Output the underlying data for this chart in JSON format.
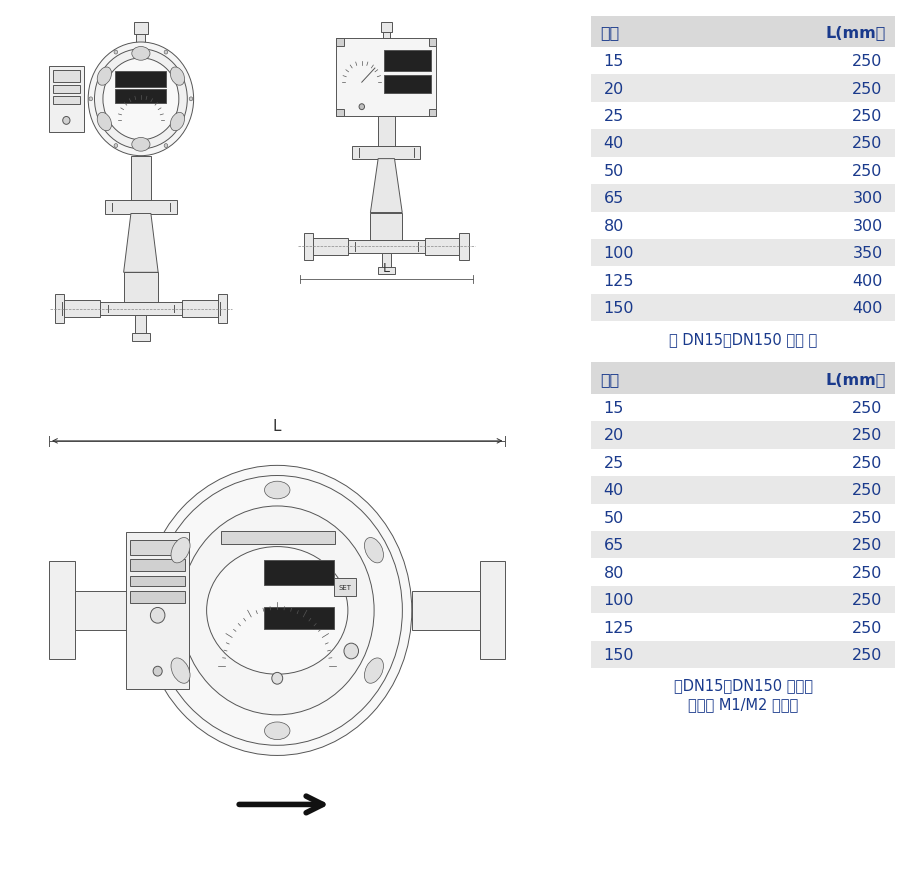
{
  "table1_header": [
    "口径",
    "L(mm）"
  ],
  "table1_rows": [
    [
      "15",
      "250"
    ],
    [
      "20",
      "250"
    ],
    [
      "25",
      "250"
    ],
    [
      "40",
      "250"
    ],
    [
      "50",
      "250"
    ],
    [
      "65",
      "300"
    ],
    [
      "80",
      "300"
    ],
    [
      "100",
      "350"
    ],
    [
      "125",
      "400"
    ],
    [
      "150",
      "400"
    ]
  ],
  "table1_note": "（ DN15～DN150 气体 ）",
  "table2_header": [
    "口径",
    "L(mm）"
  ],
  "table2_rows": [
    [
      "15",
      "250"
    ],
    [
      "20",
      "250"
    ],
    [
      "25",
      "250"
    ],
    [
      "40",
      "250"
    ],
    [
      "50",
      "250"
    ],
    [
      "65",
      "250"
    ],
    [
      "80",
      "250"
    ],
    [
      "100",
      "250"
    ],
    [
      "125",
      "250"
    ],
    [
      "150",
      "250"
    ]
  ],
  "table2_note1": "（DN15～DN150 液体）",
  "table2_note2": "（可选 M1/M2 表头）",
  "header_bg": "#d9d9d9",
  "row_bg_odd": "#ffffff",
  "row_bg_even": "#e8e8e8",
  "text_color": "#1a3a8c",
  "note_color": "#1a3a8c",
  "bg_color": "#ffffff",
  "line_color": "#555555",
  "light_fill": "#e8e8e8",
  "dark_fill": "#222222",
  "white_fill": "#ffffff"
}
